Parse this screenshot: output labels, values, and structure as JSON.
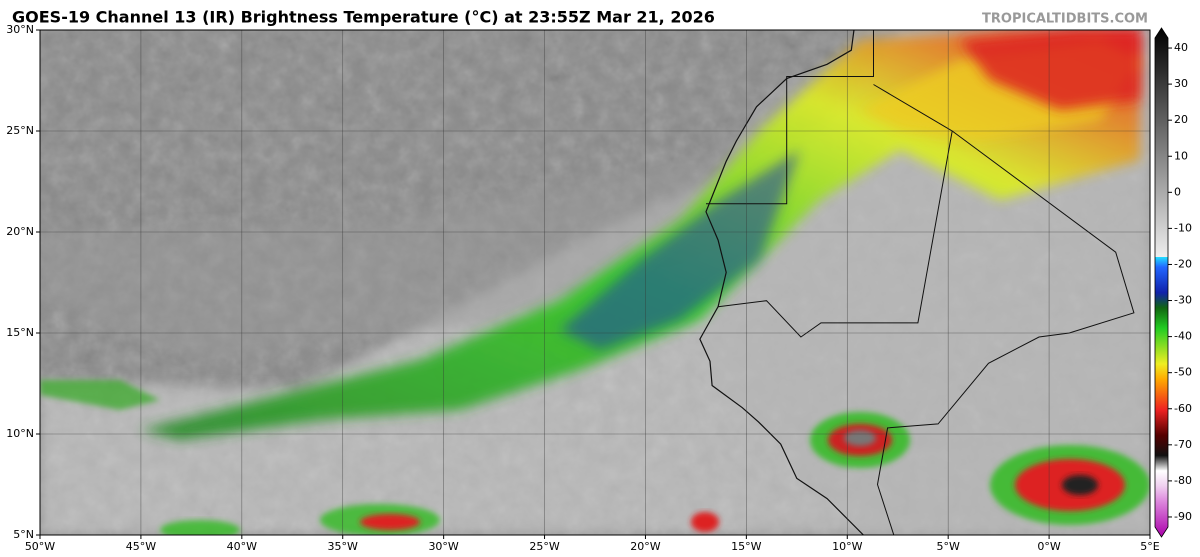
{
  "map": {
    "title": "GOES-19 Channel 13 (IR) Brightness Temperature (°C) at 23:55Z Mar 21, 2026",
    "credit": "TROPICALTIDBITS.COM",
    "lat_ticks": [
      "5°N",
      "10°N",
      "15°N",
      "20°N",
      "25°N",
      "30°N"
    ],
    "lon_ticks": [
      "50°W",
      "45°W",
      "40°W",
      "35°W",
      "30°W",
      "25°W",
      "20°W",
      "15°W",
      "10°W",
      "5°W",
      "0°W",
      "5°E"
    ],
    "colorbar": {
      "range": [
        -95,
        45
      ],
      "ticks": [
        40,
        30,
        20,
        10,
        0,
        -10,
        -20,
        -30,
        -40,
        -50,
        -60,
        -70,
        -80,
        -90
      ]
    }
  }
}
